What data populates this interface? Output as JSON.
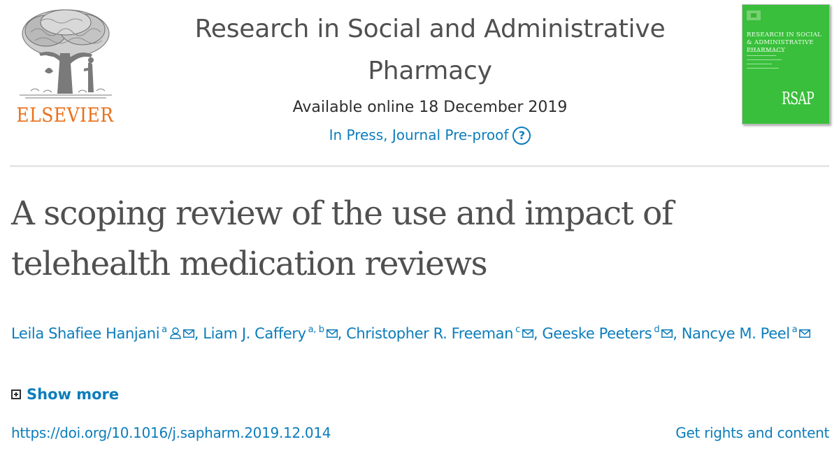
{
  "header": {
    "publisher": "ELSEVIER",
    "journal_title": "Research in Social and Administrative Pharmacy",
    "availability": "Available online 18 December 2019",
    "status": "In Press, Journal Pre-proof",
    "help_glyph": "?",
    "cover": {
      "title": "RESEARCH IN SOCIAL & ADMINISTRATIVE PHARMACY",
      "abbreviation": "RSAP",
      "color": "#39bf3b"
    }
  },
  "article": {
    "title": "A scoping review of the use and impact of telehealth medication reviews",
    "authors": [
      {
        "name": "Leila Shafiee Hanjani",
        "affiliations": "a",
        "corresponding": true
      },
      {
        "name": "Liam J. Caffery",
        "affiliations": "a, b",
        "corresponding": false
      },
      {
        "name": "Christopher R. Freeman",
        "affiliations": "c",
        "corresponding": false
      },
      {
        "name": "Geeske Peeters",
        "affiliations": "d",
        "corresponding": false
      },
      {
        "name": "Nancye M. Peel",
        "affiliations": "a",
        "corresponding": false
      }
    ],
    "separator": ",",
    "show_more": "Show more",
    "doi": "https://doi.org/10.1016/j.sapharm.2019.12.014",
    "rights": "Get rights and content"
  },
  "icons": {
    "corresponding": "user-icon",
    "email": "mail-icon",
    "expand": "plus-box-icon",
    "help": "question-circle-icon"
  },
  "colors": {
    "link": "#0c7dbb",
    "publisher": "#e9711c",
    "title": "#505050"
  }
}
